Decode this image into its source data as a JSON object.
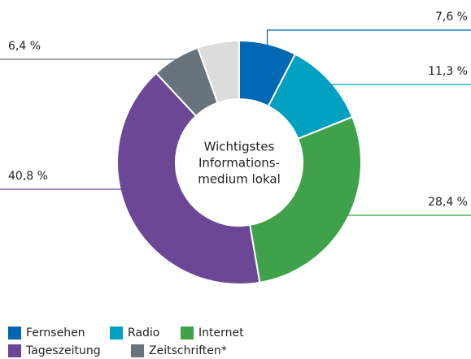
{
  "chart_data": {
    "type": "pie",
    "donut": true,
    "center_text": [
      "Wichtigstes",
      "Informations-",
      "medium lokal"
    ],
    "categories": [
      "Fernsehen",
      "Radio",
      "Internet",
      "Tageszeitung",
      "Zeitschriften*",
      null
    ],
    "values": [
      7.6,
      11.3,
      28.4,
      40.8,
      6.4,
      5.5
    ],
    "value_labels": [
      "7,6 %",
      "11,3 %",
      "28,4 %",
      "40,8 %",
      "6,4 %",
      null
    ],
    "colors": [
      "#0067b4",
      "#00a0c0",
      "#3fa14a",
      "#6b4796",
      "#68737b",
      "#dcdcdc"
    ],
    "legend": "bottom-left"
  }
}
